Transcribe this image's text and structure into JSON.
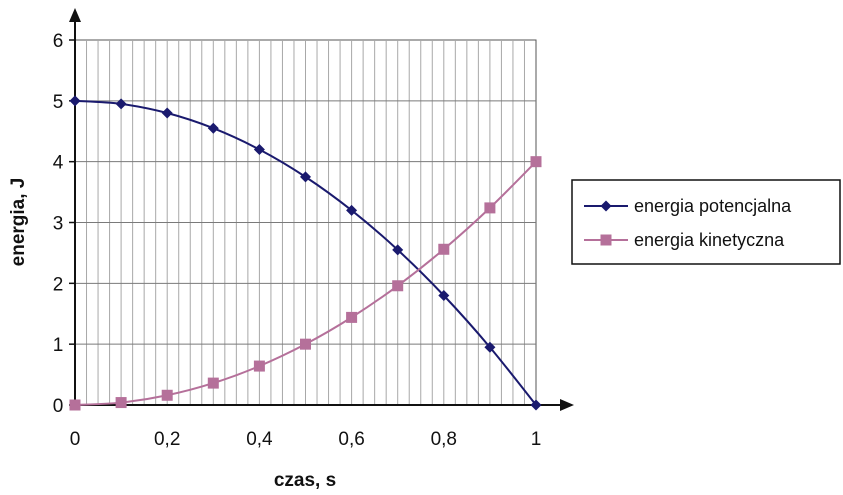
{
  "chart_data": {
    "type": "line",
    "xlabel": "czas, s",
    "ylabel": "energia, J",
    "xlim": [
      0,
      1
    ],
    "ylim": [
      0,
      6
    ],
    "x_ticks": [
      "0",
      "0,2",
      "0,4",
      "0,6",
      "0,8",
      "1"
    ],
    "y_ticks": [
      "0",
      "1",
      "2",
      "3",
      "4",
      "5",
      "6"
    ],
    "grid": true,
    "legend_position": "right",
    "x": [
      0,
      0.1,
      0.2,
      0.3,
      0.4,
      0.5,
      0.6,
      0.7,
      0.8,
      0.9,
      1.0
    ],
    "series": [
      {
        "name": "energia potencjalna",
        "marker": "diamond",
        "color": "#1a1a6e",
        "values": [
          5.0,
          4.95,
          4.8,
          4.55,
          4.2,
          3.75,
          3.2,
          2.55,
          1.8,
          0.95,
          0.0
        ]
      },
      {
        "name": "energia kinetyczna",
        "marker": "square",
        "color": "#b5709a",
        "values": [
          0.0,
          0.04,
          0.16,
          0.36,
          0.64,
          1.0,
          1.44,
          1.96,
          2.56,
          3.24,
          4.0
        ]
      }
    ]
  }
}
